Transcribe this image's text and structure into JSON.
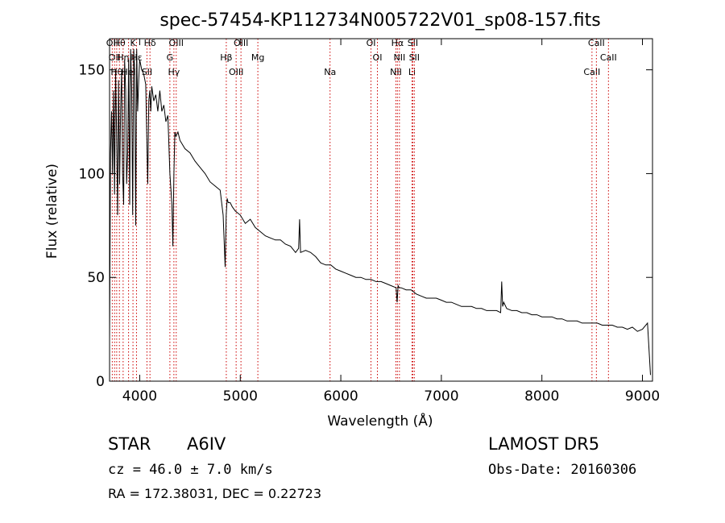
{
  "chart_data": {
    "type": "line",
    "title": "spec-57454-KP112734N005722V01_sp08-157.fits",
    "xlabel": "Wavelength (Å)",
    "ylabel": "Flux (relative)",
    "xlim": [
      3700,
      9100
    ],
    "ylim": [
      0,
      165
    ],
    "x_ticks": [
      4000,
      5000,
      6000,
      7000,
      8000,
      9000
    ],
    "y_ticks": [
      0,
      50,
      100,
      150
    ],
    "x_tick_labels": [
      "4000",
      "5000",
      "6000",
      "7000",
      "8000",
      "9000"
    ],
    "y_tick_labels": [
      "0",
      "50",
      "100",
      "150"
    ],
    "line_color": "#000000",
    "marker_color": "#cc0000",
    "series": [
      {
        "x": [
          3700,
          3710,
          3720,
          3730,
          3740,
          3750,
          3760,
          3770,
          3780,
          3790,
          3800,
          3810,
          3820,
          3830,
          3840,
          3850,
          3860,
          3870,
          3880,
          3890,
          3900,
          3910,
          3920,
          3930,
          3940,
          3950,
          3960,
          3970,
          3980,
          3990,
          4000,
          4020,
          4040,
          4060,
          4080,
          4090,
          4100,
          4110,
          4120,
          4140,
          4160,
          4180,
          4200,
          4220,
          4240,
          4260,
          4280,
          4300,
          4320,
          4330,
          4340,
          4350,
          4360,
          4380,
          4400,
          4450,
          4500,
          4550,
          4600,
          4650,
          4700,
          4750,
          4800,
          4830,
          4850,
          4860,
          4870,
          4880,
          4900,
          4920,
          4950,
          5000,
          5050,
          5100,
          5150,
          5200,
          5250,
          5300,
          5350,
          5400,
          5450,
          5500,
          5550,
          5580,
          5590,
          5600,
          5650,
          5700,
          5750,
          5800,
          5850,
          5900,
          5950,
          6000,
          6050,
          6100,
          6150,
          6200,
          6250,
          6300,
          6350,
          6400,
          6450,
          6500,
          6550,
          6560,
          6570,
          6580,
          6600,
          6650,
          6700,
          6750,
          6800,
          6850,
          6900,
          6950,
          7000,
          7050,
          7100,
          7150,
          7200,
          7250,
          7300,
          7350,
          7400,
          7450,
          7500,
          7550,
          7590,
          7600,
          7610,
          7620,
          7650,
          7700,
          7750,
          7800,
          7850,
          7900,
          7950,
          8000,
          8050,
          8100,
          8150,
          8200,
          8250,
          8300,
          8350,
          8400,
          8450,
          8500,
          8550,
          8600,
          8650,
          8700,
          8750,
          8800,
          8850,
          8900,
          8950,
          9000,
          9050,
          9080
        ],
        "y": [
          20,
          110,
          130,
          100,
          140,
          90,
          150,
          120,
          80,
          145,
          95,
          130,
          150,
          100,
          85,
          155,
          140,
          95,
          110,
          155,
          85,
          160,
          140,
          80,
          160,
          150,
          75,
          160,
          130,
          145,
          155,
          150,
          148,
          143,
          95,
          135,
          140,
          130,
          142,
          135,
          138,
          130,
          140,
          130,
          133,
          125,
          128,
          100,
          85,
          65,
          100,
          120,
          118,
          120,
          116,
          112,
          110,
          106,
          103,
          100,
          96,
          94,
          92,
          80,
          55,
          80,
          88,
          86,
          86,
          84,
          82,
          80,
          76,
          78,
          74,
          72,
          70,
          69,
          68,
          68,
          66,
          65,
          62,
          64,
          78,
          62,
          63,
          62,
          60,
          57,
          56,
          56,
          54,
          53,
          52,
          51,
          50,
          50,
          49,
          49,
          48,
          48,
          47,
          46,
          45,
          38,
          46,
          45,
          45,
          44,
          44,
          42,
          41,
          40,
          40,
          40,
          39,
          38,
          38,
          37,
          36,
          36,
          36,
          35,
          35,
          34,
          34,
          34,
          33,
          48,
          36,
          38,
          35,
          34,
          34,
          33,
          33,
          32,
          32,
          31,
          31,
          31,
          30,
          30,
          29,
          29,
          29,
          28,
          28,
          28,
          28,
          27,
          27,
          27,
          26,
          26,
          25,
          26,
          24,
          25,
          28,
          3
        ]
      }
    ],
    "lines": [
      {
        "x": 3727,
        "label": "OII"
      },
      {
        "x": 3750,
        "label": "OII"
      },
      {
        "x": 3771,
        "label": "Hθ"
      },
      {
        "x": 3798,
        "label": "Hθ"
      },
      {
        "x": 3835,
        "label": "Hη"
      },
      {
        "x": 3889,
        "label": "HeI"
      },
      {
        "x": 3933,
        "label": "K"
      },
      {
        "x": 3968,
        "label": "Hε"
      },
      {
        "x": 4072,
        "label": "SII"
      },
      {
        "x": 4102,
        "label": "Hδ"
      },
      {
        "x": 4300,
        "label": "G"
      },
      {
        "x": 4340,
        "label": "Hγ"
      },
      {
        "x": 4363,
        "label": "OIII"
      },
      {
        "x": 4861,
        "label": "Hβ"
      },
      {
        "x": 4959,
        "label": "OIII"
      },
      {
        "x": 5007,
        "label": "OIII"
      },
      {
        "x": 5175,
        "label": "Mg"
      },
      {
        "x": 5893,
        "label": "Na"
      },
      {
        "x": 6300,
        "label": "OI"
      },
      {
        "x": 6364,
        "label": "OI"
      },
      {
        "x": 6548,
        "label": "NII"
      },
      {
        "x": 6563,
        "label": "Hα"
      },
      {
        "x": 6583,
        "label": "NII"
      },
      {
        "x": 6708,
        "label": "Li"
      },
      {
        "x": 6716,
        "label": "SII"
      },
      {
        "x": 6731,
        "label": "SII"
      },
      {
        "x": 8498,
        "label": "CaII"
      },
      {
        "x": 8542,
        "label": "CaII"
      },
      {
        "x": 8662,
        "label": "CaII"
      }
    ]
  },
  "info": {
    "class_label": "STAR",
    "subclass": "A6IV",
    "survey": "LAMOST DR5",
    "redshift": "cz = 46.0 ± 7.0 km/s",
    "obs_date": "Obs-Date: 20160306",
    "coords": "RA = 172.38031, DEC =   0.22723"
  }
}
